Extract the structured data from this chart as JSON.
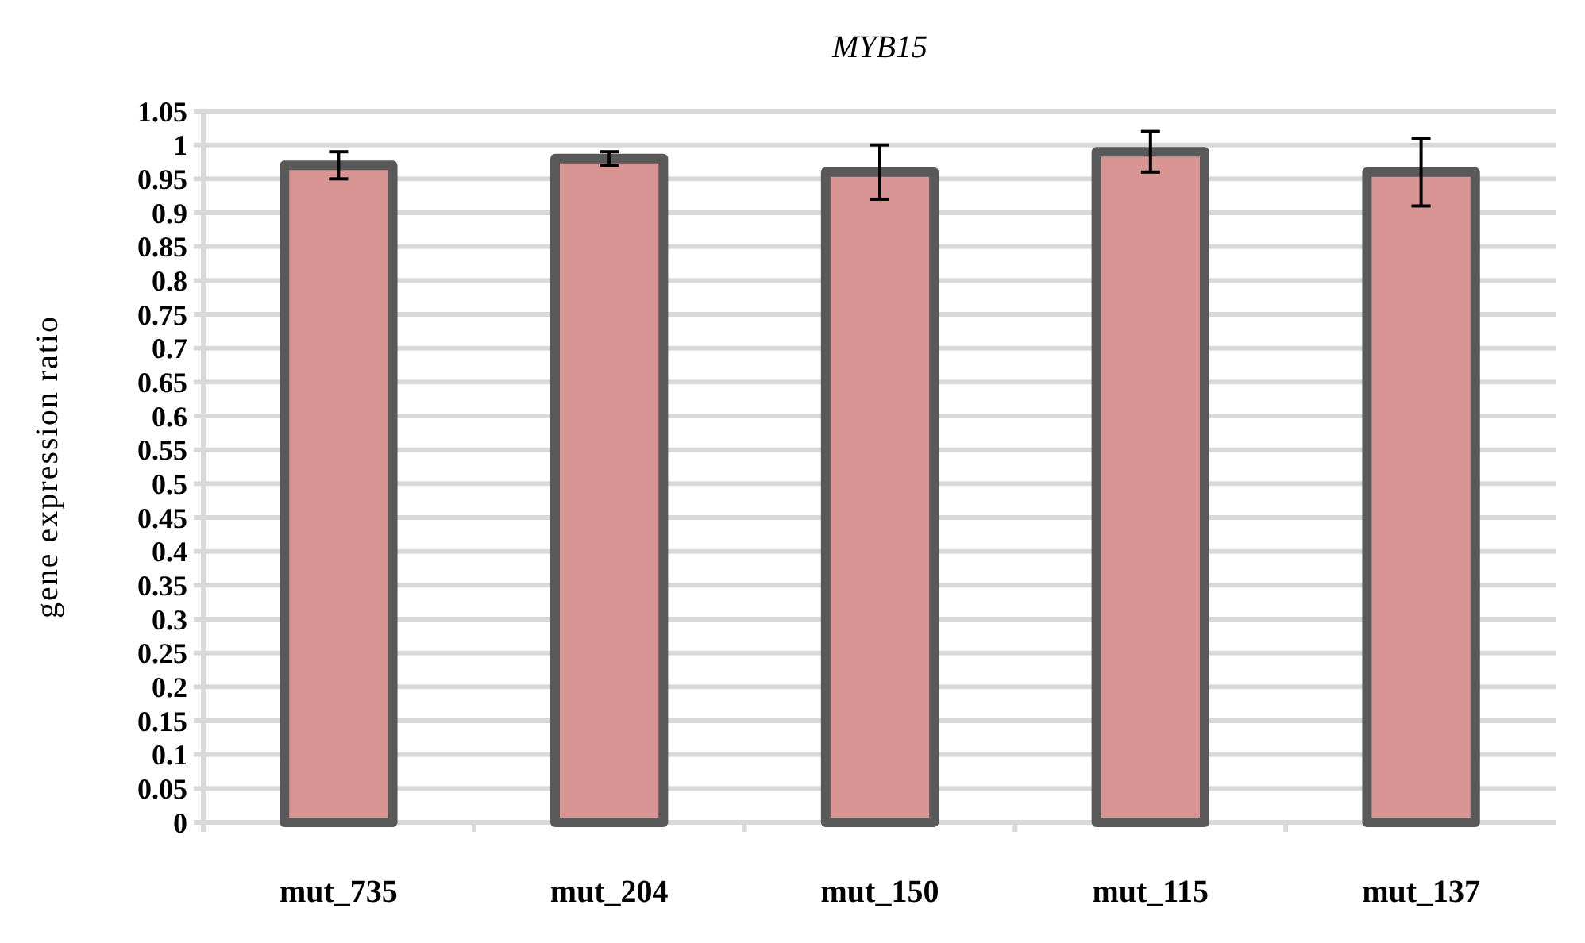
{
  "chart_data": {
    "type": "bar",
    "title": "MYB15",
    "ylabel": "gene expression ratio",
    "categories": [
      "mut_735",
      "mut_204",
      "mut_150",
      "mut_115",
      "mut_137"
    ],
    "values": [
      0.97,
      0.98,
      0.96,
      0.99,
      0.96
    ],
    "errors": [
      0.02,
      0.01,
      0.04,
      0.03,
      0.05
    ],
    "color": "#d99594",
    "ylim": [
      0,
      1.05
    ],
    "yticks": [
      0,
      0.05,
      0.1,
      0.15,
      0.2,
      0.25,
      0.3,
      0.35,
      0.4,
      0.45,
      0.5,
      0.55,
      0.6,
      0.65,
      0.7,
      0.75,
      0.8,
      0.85,
      0.9,
      0.95,
      1,
      1.05
    ],
    "grid": true
  }
}
